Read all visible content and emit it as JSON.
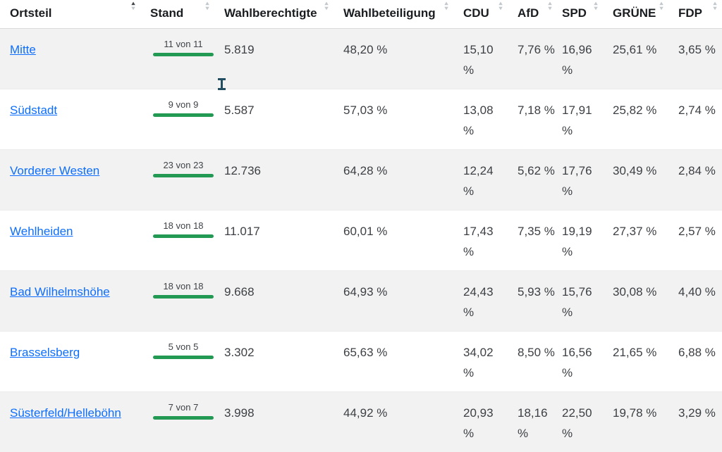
{
  "colors": {
    "link": "#0d6efd",
    "progress_bar": "#229a54",
    "row_stripe": "#f2f2f2"
  },
  "table": {
    "columns": [
      {
        "key": "ortsteil",
        "label": "Ortsteil",
        "sort": "asc"
      },
      {
        "key": "stand",
        "label": "Stand",
        "sort": "none"
      },
      {
        "key": "wahlberechtigte",
        "label": "Wahlberechtigte",
        "sort": "none"
      },
      {
        "key": "wahlbeteiligung",
        "label": "Wahlbeteiligung",
        "sort": "none"
      },
      {
        "key": "cdu",
        "label": "CDU",
        "sort": "none"
      },
      {
        "key": "afd",
        "label": "AfD",
        "sort": "none"
      },
      {
        "key": "spd",
        "label": "SPD",
        "sort": "none"
      },
      {
        "key": "gruene",
        "label": "GRÜNE",
        "sort": "none"
      },
      {
        "key": "fdp",
        "label": "FDP",
        "sort": "none"
      }
    ],
    "rows": [
      {
        "ortsteil": "Mitte",
        "stand": "11 von 11",
        "wahlberechtigte": "5.819",
        "wahlbeteiligung": "48,20 %",
        "cdu": "15,10 %",
        "afd": "7,76 %",
        "spd": "16,96 %",
        "gruene": "25,61 %",
        "fdp": "3,65 %"
      },
      {
        "ortsteil": "Südstadt",
        "stand": "9 von 9",
        "wahlberechtigte": "5.587",
        "wahlbeteiligung": "57,03 %",
        "cdu": "13,08 %",
        "afd": "7,18 %",
        "spd": "17,91 %",
        "gruene": "25,82 %",
        "fdp": "2,74 %"
      },
      {
        "ortsteil": "Vorderer Westen",
        "stand": "23 von 23",
        "wahlberechtigte": "12.736",
        "wahlbeteiligung": "64,28 %",
        "cdu": "12,24 %",
        "afd": "5,62 %",
        "spd": "17,76 %",
        "gruene": "30,49 %",
        "fdp": "2,84 %"
      },
      {
        "ortsteil": "Wehlheiden",
        "stand": "18 von 18",
        "wahlberechtigte": "11.017",
        "wahlbeteiligung": "60,01 %",
        "cdu": "17,43 %",
        "afd": "7,35 %",
        "spd": "19,19 %",
        "gruene": "27,37 %",
        "fdp": "2,57 %"
      },
      {
        "ortsteil": "Bad Wilhelmshöhe",
        "stand": "18 von 18",
        "wahlberechtigte": "9.668",
        "wahlbeteiligung": "64,93 %",
        "cdu": "24,43 %",
        "afd": "5,93 %",
        "spd": "15,76 %",
        "gruene": "30,08 %",
        "fdp": "4,40 %"
      },
      {
        "ortsteil": "Brasselsberg",
        "stand": "5 von 5",
        "wahlberechtigte": "3.302",
        "wahlbeteiligung": "65,63 %",
        "cdu": "34,02 %",
        "afd": "8,50 %",
        "spd": "16,56 %",
        "gruene": "21,65 %",
        "fdp": "6,88 %"
      },
      {
        "ortsteil": "Süsterfeld/Helleböhn",
        "stand": "7 von 7",
        "wahlberechtigte": "3.998",
        "wahlbeteiligung": "44,92 %",
        "cdu": "20,93 %",
        "afd": "18,16 %",
        "spd": "22,50 %",
        "gruene": "19,78 %",
        "fdp": "3,29 %"
      }
    ]
  }
}
